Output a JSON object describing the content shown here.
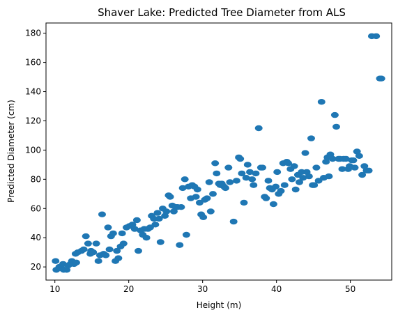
{
  "chart_data": {
    "type": "scatter",
    "title": "Shaver Lake: Predicted Tree Diameter from ALS",
    "xlabel": "Height (m)",
    "ylabel": "Predicted Diameter (cm)",
    "xlim": [
      8.8,
      55.6
    ],
    "ylim": [
      11,
      187
    ],
    "xticks": [
      10,
      20,
      30,
      40,
      50
    ],
    "yticks": [
      20,
      40,
      60,
      80,
      100,
      120,
      140,
      160,
      180
    ],
    "grid": false,
    "color": "#1f77b4",
    "series": [
      {
        "points": [
          [
            10.1,
            24
          ],
          [
            10.2,
            18
          ],
          [
            10.6,
            20
          ],
          [
            10.9,
            19
          ],
          [
            11.1,
            22
          ],
          [
            11.2,
            18
          ],
          [
            11.6,
            18
          ],
          [
            11.8,
            21
          ],
          [
            12.1,
            22
          ],
          [
            12.3,
            24
          ],
          [
            12.6,
            22
          ],
          [
            12.9,
            23
          ],
          [
            12.8,
            29
          ],
          [
            13.1,
            30
          ],
          [
            13.6,
            31
          ],
          [
            13.9,
            32
          ],
          [
            14.2,
            41
          ],
          [
            14.5,
            36
          ],
          [
            14.8,
            29
          ],
          [
            14.9,
            31
          ],
          [
            15.2,
            30
          ],
          [
            15.6,
            36
          ],
          [
            15.9,
            24
          ],
          [
            16.1,
            28
          ],
          [
            16.4,
            56
          ],
          [
            16.6,
            29
          ],
          [
            16.9,
            28
          ],
          [
            17.2,
            47
          ],
          [
            17.4,
            32
          ],
          [
            17.6,
            41
          ],
          [
            17.9,
            43
          ],
          [
            18.2,
            24
          ],
          [
            18.4,
            31
          ],
          [
            18.6,
            26
          ],
          [
            18.9,
            34
          ],
          [
            19.1,
            43
          ],
          [
            19.3,
            36
          ],
          [
            19.7,
            47
          ],
          [
            20.1,
            48
          ],
          [
            20.5,
            49
          ],
          [
            20.8,
            46
          ],
          [
            21.1,
            52
          ],
          [
            21.3,
            31
          ],
          [
            21.6,
            45
          ],
          [
            21.9,
            42
          ],
          [
            22.1,
            46
          ],
          [
            22.4,
            40
          ],
          [
            22.6,
            46
          ],
          [
            22.9,
            47
          ],
          [
            23.1,
            55
          ],
          [
            23.4,
            53
          ],
          [
            23.6,
            49
          ],
          [
            23.9,
            57
          ],
          [
            24.1,
            53
          ],
          [
            24.3,
            37
          ],
          [
            24.6,
            60
          ],
          [
            24.9,
            55
          ],
          [
            25.1,
            58
          ],
          [
            25.4,
            69
          ],
          [
            25.6,
            68
          ],
          [
            25.9,
            62
          ],
          [
            26.1,
            58
          ],
          [
            26.4,
            61
          ],
          [
            26.6,
            61
          ],
          [
            26.9,
            35
          ],
          [
            27.1,
            61
          ],
          [
            27.3,
            74
          ],
          [
            27.6,
            80
          ],
          [
            27.8,
            42
          ],
          [
            28.1,
            75
          ],
          [
            28.4,
            67
          ],
          [
            28.6,
            76
          ],
          [
            28.9,
            75
          ],
          [
            29.1,
            68
          ],
          [
            29.3,
            73
          ],
          [
            29.6,
            64
          ],
          [
            29.8,
            56
          ],
          [
            30.1,
            54
          ],
          [
            30.3,
            66
          ],
          [
            30.6,
            67
          ],
          [
            30.9,
            78
          ],
          [
            31.1,
            58
          ],
          [
            31.4,
            70
          ],
          [
            31.7,
            91
          ],
          [
            31.9,
            84
          ],
          [
            32.2,
            77
          ],
          [
            32.4,
            76
          ],
          [
            32.6,
            77
          ],
          [
            32.9,
            75
          ],
          [
            33.1,
            74
          ],
          [
            33.5,
            88
          ],
          [
            33.7,
            78
          ],
          [
            34.2,
            51
          ],
          [
            34.6,
            79
          ],
          [
            34.9,
            95
          ],
          [
            35.1,
            94
          ],
          [
            35.3,
            84
          ],
          [
            35.6,
            64
          ],
          [
            35.9,
            81
          ],
          [
            36.1,
            90
          ],
          [
            36.4,
            85
          ],
          [
            36.7,
            80
          ],
          [
            36.9,
            76
          ],
          [
            37.2,
            84
          ],
          [
            37.6,
            115
          ],
          [
            37.9,
            88
          ],
          [
            38.1,
            88
          ],
          [
            38.4,
            68
          ],
          [
            38.6,
            67
          ],
          [
            38.9,
            79
          ],
          [
            39.1,
            74
          ],
          [
            39.4,
            73
          ],
          [
            39.6,
            63
          ],
          [
            39.9,
            75
          ],
          [
            40.1,
            85
          ],
          [
            40.3,
            70
          ],
          [
            40.6,
            72
          ],
          [
            40.9,
            91
          ],
          [
            41.1,
            76
          ],
          [
            41.4,
            92
          ],
          [
            41.6,
            91
          ],
          [
            41.9,
            87
          ],
          [
            42.1,
            80
          ],
          [
            42.4,
            89
          ],
          [
            42.6,
            73
          ],
          [
            42.9,
            83
          ],
          [
            43.1,
            78
          ],
          [
            43.4,
            85
          ],
          [
            43.6,
            81
          ],
          [
            43.9,
            98
          ],
          [
            44.1,
            85
          ],
          [
            44.4,
            82
          ],
          [
            44.7,
            108
          ],
          [
            44.9,
            76
          ],
          [
            45.1,
            76
          ],
          [
            45.4,
            88
          ],
          [
            45.7,
            79
          ],
          [
            46.1,
            133
          ],
          [
            46.4,
            81
          ],
          [
            46.7,
            92
          ],
          [
            46.9,
            95
          ],
          [
            47.1,
            82
          ],
          [
            47.3,
            97
          ],
          [
            47.6,
            94
          ],
          [
            47.9,
            124
          ],
          [
            48.1,
            116
          ],
          [
            48.4,
            94
          ],
          [
            48.6,
            94
          ],
          [
            48.9,
            87
          ],
          [
            49.1,
            94
          ],
          [
            49.4,
            94
          ],
          [
            49.7,
            87
          ],
          [
            49.9,
            89
          ],
          [
            50.2,
            93
          ],
          [
            50.4,
            93
          ],
          [
            50.6,
            88
          ],
          [
            50.9,
            99
          ],
          [
            51.2,
            96
          ],
          [
            51.6,
            83
          ],
          [
            51.9,
            89
          ],
          [
            52.2,
            86
          ],
          [
            52.5,
            86
          ],
          [
            52.9,
            178
          ],
          [
            53.5,
            178
          ],
          [
            54.0,
            149
          ],
          [
            54.2,
            149
          ]
        ]
      }
    ]
  }
}
